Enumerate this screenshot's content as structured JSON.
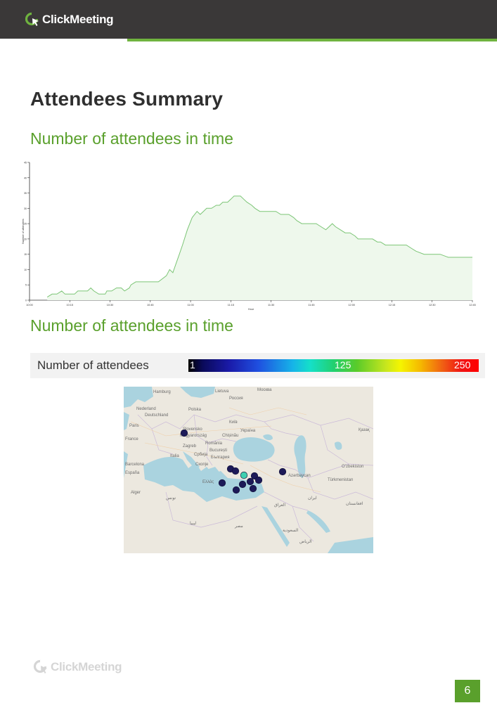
{
  "header": {
    "brand": "ClickMeeting",
    "accent_color": "#6fb33f",
    "bar_color": "#3a3838",
    "logo_icon": "clickmeeting-logo-icon"
  },
  "section": {
    "title": "Attendees Summary",
    "chart_heading": "Number of attendees in time",
    "map_heading": "Number of attendees in time"
  },
  "chart_data": {
    "type": "area",
    "title": "",
    "xlabel": "Hour",
    "ylabel": "Number of attendees",
    "ylim": [
      0,
      45
    ],
    "yticks": [
      0,
      5,
      10,
      15,
      20,
      25,
      30,
      35,
      40,
      45
    ],
    "xlim_minutes": [
      0,
      55
    ],
    "xticks": [
      "10:00",
      "10:15",
      "10:30",
      "10:45",
      "11:00",
      "11:15",
      "11:30",
      "11:45",
      "12:00",
      "12:15",
      "12:30",
      "12:45"
    ],
    "grid": false,
    "line_color": "#7cc576",
    "fill_color": "#eef8ec",
    "x_minutes": [
      2.2,
      2.8,
      3.4,
      4.0,
      4.4,
      5.0,
      5.6,
      6.0,
      6.2,
      6.8,
      7.2,
      7.6,
      8.0,
      8.6,
      9.0,
      9.4,
      9.6,
      10.2,
      10.8,
      11.4,
      11.8,
      12.4,
      12.6,
      13.2,
      13.8,
      14.4,
      15.0,
      16.0,
      17.0,
      17.4,
      17.8,
      18.2,
      18.6,
      19.0,
      19.6,
      20.2,
      20.8,
      21.2,
      21.6,
      22.0,
      22.6,
      23.2,
      23.6,
      24.0,
      24.6,
      25.0,
      25.4,
      25.8,
      26.2,
      26.6,
      27.0,
      27.6,
      28.0,
      28.6,
      29.0,
      29.6,
      30.0,
      30.6,
      31.2,
      31.6,
      32.2,
      32.8,
      33.2,
      33.8,
      34.4,
      35.0,
      35.6,
      36.2,
      36.8,
      37.2,
      37.6,
      38.0,
      38.6,
      39.2,
      39.8,
      40.4,
      40.8,
      41.4,
      42.0,
      42.6,
      43.2,
      43.6,
      44.2,
      44.8,
      45.6,
      46.2,
      46.8,
      47.4,
      48.0,
      49.0,
      50.0,
      51.0,
      52.0,
      53.0,
      54.0,
      55.0
    ],
    "values": [
      1,
      2,
      2,
      3,
      2,
      2,
      2,
      3,
      3,
      3,
      3,
      4,
      3,
      2,
      2,
      2,
      3,
      3,
      4,
      4,
      3,
      4,
      5,
      6,
      6,
      6,
      6,
      6,
      8,
      10,
      9,
      12,
      15,
      18,
      23,
      27,
      29,
      28,
      29,
      30,
      30,
      31,
      31,
      32,
      32,
      33,
      34,
      34,
      34,
      33,
      32,
      31,
      30,
      29,
      29,
      29,
      29,
      29,
      28,
      28,
      28,
      27,
      26,
      25,
      25,
      25,
      25,
      24,
      23,
      24,
      25,
      24,
      23,
      22,
      22,
      21,
      20,
      20,
      20,
      20,
      19,
      19,
      18,
      18,
      18,
      18,
      18,
      17,
      16,
      15,
      15,
      15,
      14,
      14,
      14,
      14
    ]
  },
  "legend": {
    "label": "Number of attendees",
    "min": "1",
    "mid": "125",
    "max": "250"
  },
  "map": {
    "labels": {
      "hamburg": "Hamburg",
      "nederland": "Nederland",
      "deutschland": "Deutschland",
      "polska": "Polska",
      "lietuva": "Lietuva",
      "moscow": "Москва",
      "russia": "Россия",
      "paris": "Paris",
      "france": "France",
      "slovensko": "Slovensko",
      "magyarorszag": "Magyarország",
      "kyiv": "Київ",
      "ukraina": "Україна",
      "chisinau": "Chișinău",
      "kazakh": "Қазақ",
      "zagreb": "Zagreb",
      "romania": "România",
      "bucuresti": "București",
      "srbija": "Србија",
      "bulgaria": "България",
      "skopje": "Скопје",
      "barcelona": "Barcelona",
      "espana": "España",
      "italia": "Italia",
      "ellas": "Ελλάς",
      "azerbaycan": "Azərbaycan",
      "uzbekiston": "Oʻzbekiston",
      "turkmenistan": "Türkmenistan",
      "algerie": "Alger",
      "tunis": "تونس",
      "libya": "ليبيا",
      "misr": "مصر",
      "iraq": "العراق",
      "iran": "ایران",
      "saudi": "السعودية",
      "afghanistan": "افغانستان",
      "riyadh": "الرياض"
    }
  },
  "map_points": [
    {
      "name": "hungary-point",
      "color": "#1c1a58"
    },
    {
      "name": "istanbul-point",
      "color": "#1c1a58"
    },
    {
      "name": "bursa-point",
      "color": "#1c1a58"
    },
    {
      "name": "izmir-point",
      "color": "#1c1a58"
    },
    {
      "name": "ankara-point",
      "color": "#3fd0b0"
    },
    {
      "name": "konya-point",
      "color": "#1c1a58"
    },
    {
      "name": "kayseri-point",
      "color": "#1c1a58"
    },
    {
      "name": "antalya-point",
      "color": "#1c1a58"
    },
    {
      "name": "adana-point",
      "color": "#1c1a58"
    },
    {
      "name": "eskisehir-point",
      "color": "#1c1a58"
    },
    {
      "name": "samsun-point",
      "color": "#1c1a58"
    },
    {
      "name": "georgia-point",
      "color": "#1c1a58"
    }
  ],
  "footer": {
    "brand": "ClickMeeting",
    "page_number": "6"
  }
}
